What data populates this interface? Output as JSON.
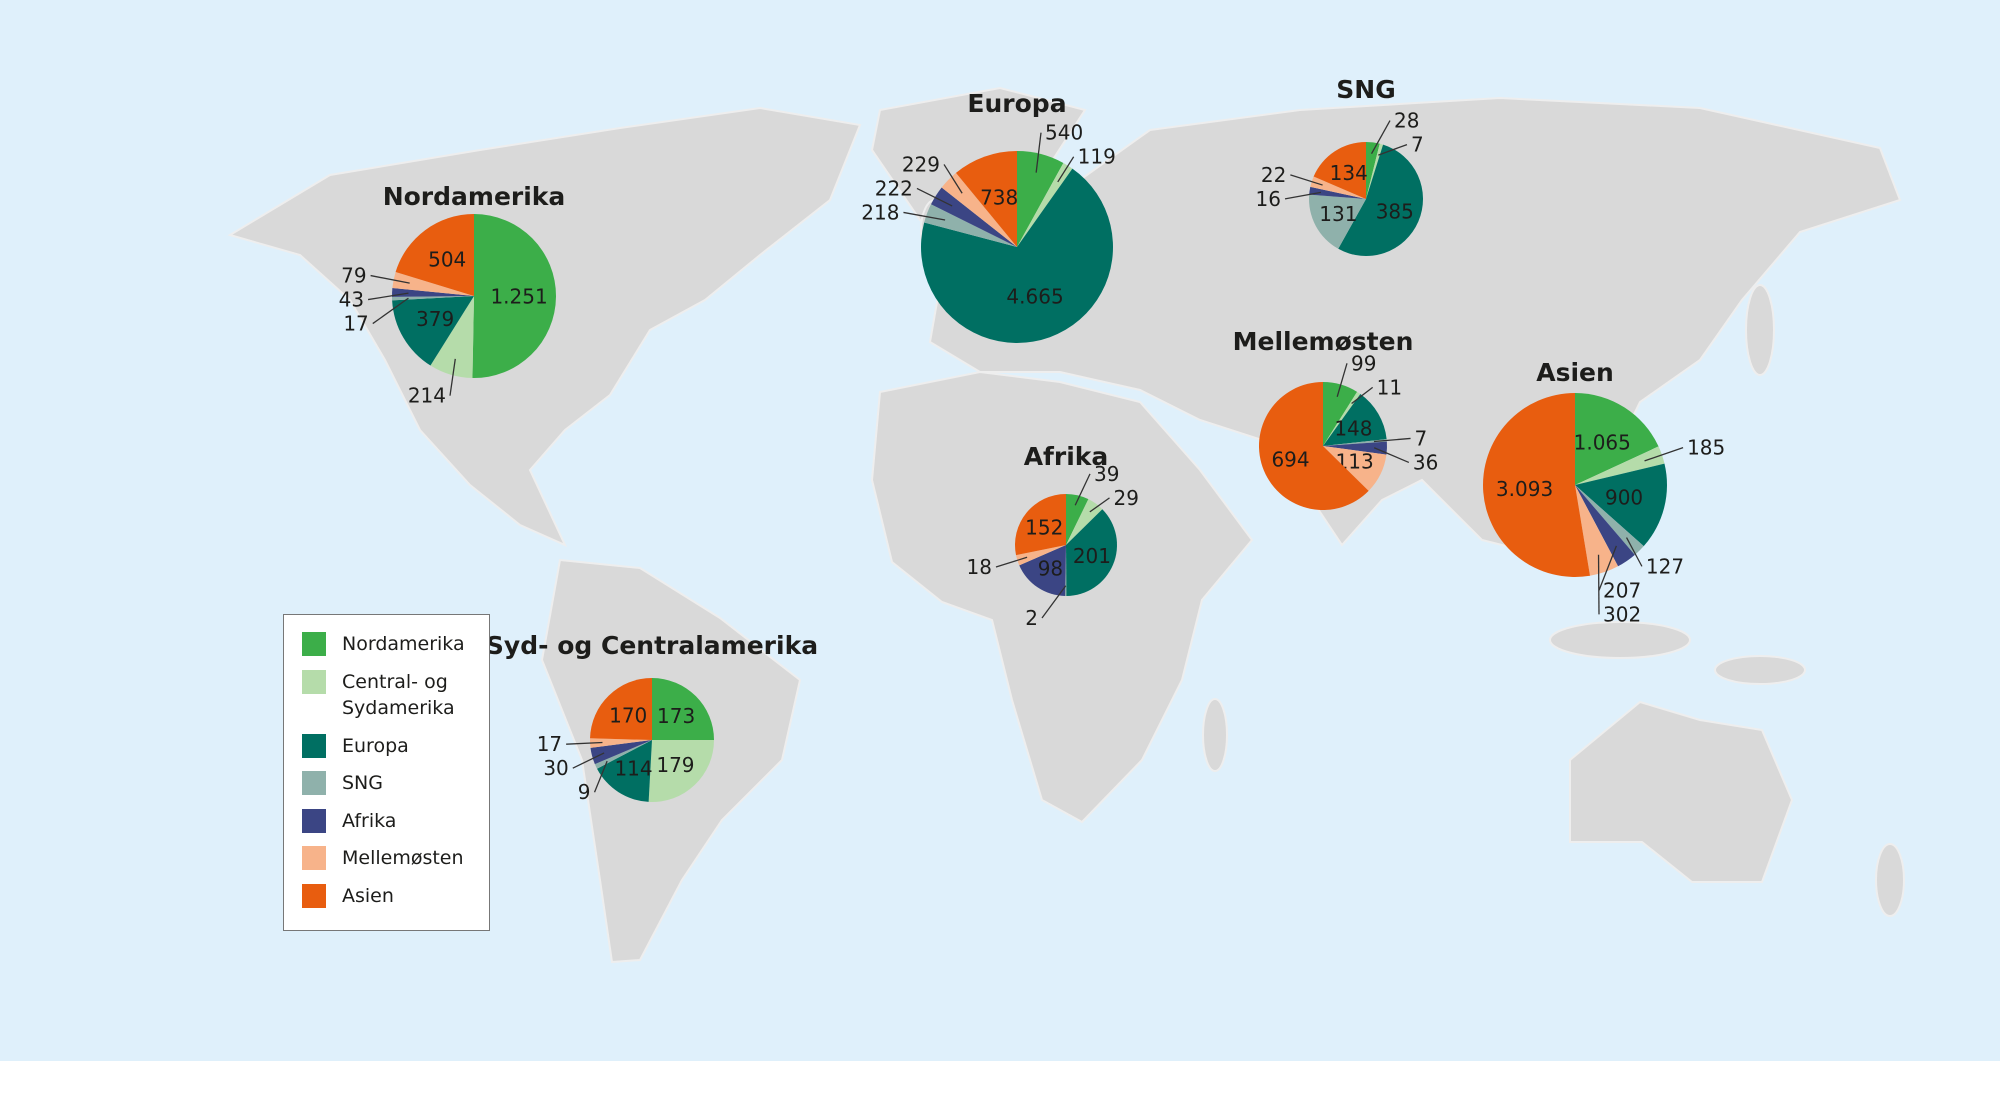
{
  "colors": {
    "ocean": "#dff0fb",
    "land": "#d9d9d9",
    "Nordamerika": "#3cae49",
    "Central- og Sydamerika": "#b5dcaa",
    "Europa": "#006f62",
    "SNG": "#8fb1ab",
    "Afrika": "#3b4584",
    "Mellemøsten": "#f7b38a",
    "Asien": "#e85d0f"
  },
  "legend": {
    "items": [
      {
        "key": "Nordamerika",
        "label": "Nordamerika"
      },
      {
        "key": "Central- og Sydamerika",
        "label": "Central- og Sydamerika"
      },
      {
        "key": "Europa",
        "label": "Europa"
      },
      {
        "key": "SNG",
        "label": "SNG"
      },
      {
        "key": "Afrika",
        "label": "Afrika"
      },
      {
        "key": "Mellemøsten",
        "label": "Mellemøsten"
      },
      {
        "key": "Asien",
        "label": "Asien"
      }
    ]
  },
  "chart_data": {
    "type": "pie",
    "categories": [
      "Nordamerika",
      "Central- og Sydamerika",
      "Europa",
      "SNG",
      "Afrika",
      "Mellemøsten",
      "Asien"
    ],
    "number_format": "thousands separator '.'",
    "pies": [
      {
        "id": "nordamerika",
        "title": "Nordamerika",
        "values": [
          1251,
          214,
          379,
          17,
          43,
          79,
          504
        ]
      },
      {
        "id": "syd-og-centralamerika",
        "title": "Syd- og Centralamerika",
        "values": [
          173,
          179,
          114,
          9,
          30,
          17,
          170
        ]
      },
      {
        "id": "europa",
        "title": "Europa",
        "values": [
          540,
          119,
          4665,
          218,
          222,
          229,
          738
        ]
      },
      {
        "id": "sng",
        "title": "SNG",
        "values": [
          28,
          7,
          385,
          131,
          16,
          22,
          134
        ]
      },
      {
        "id": "afrika",
        "title": "Afrika",
        "values": [
          39,
          29,
          201,
          2,
          98,
          18,
          152
        ]
      },
      {
        "id": "mellemosten",
        "title": "Mellemøsten",
        "values": [
          99,
          11,
          148,
          7,
          36,
          113,
          694
        ]
      },
      {
        "id": "asien",
        "title": "Asien",
        "values": [
          1065,
          185,
          900,
          127,
          207,
          302,
          3093
        ]
      }
    ]
  }
}
